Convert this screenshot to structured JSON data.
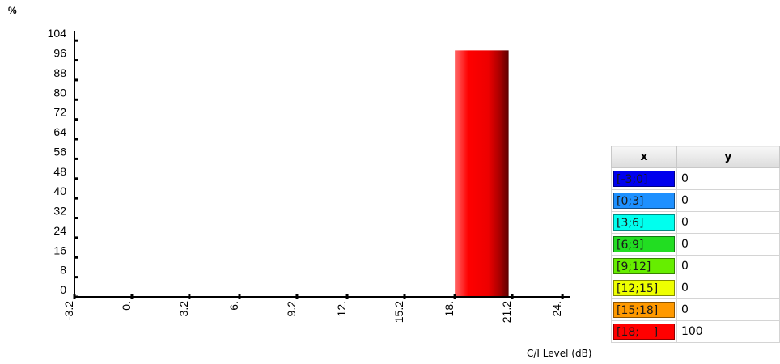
{
  "chart_data": {
    "type": "bar",
    "ylabel": "%",
    "xlabel": "C/I Level (dB)",
    "ylim": [
      0,
      108
    ],
    "yticks": [
      0,
      8,
      16,
      24,
      32,
      40,
      48,
      56,
      64,
      72,
      80,
      88,
      96,
      104
    ],
    "xlim": [
      -3.2,
      24.4
    ],
    "xticks": [
      "-3.2",
      "0.",
      "3.2",
      "6.",
      "9.2",
      "12.",
      "15.2",
      "18.",
      "21.2",
      "24."
    ],
    "xtick_values": [
      -3.2,
      0,
      3.2,
      6,
      9.2,
      12,
      15.2,
      18,
      21.2,
      24
    ],
    "bars": [
      {
        "x_from": 18,
        "x_to": 21,
        "value": 100,
        "color": "#ff0000"
      }
    ],
    "legend": {
      "header_x": "x",
      "header_y": "y",
      "rows": [
        {
          "label": "[-3;0]",
          "value": "0",
          "color": "#0000ee"
        },
        {
          "label": "[0;3]",
          "value": "0",
          "color": "#1e90ff"
        },
        {
          "label": "[3;6]",
          "value": "0",
          "color": "#00ffee"
        },
        {
          "label": "[6;9]",
          "value": "0",
          "color": "#22dd22"
        },
        {
          "label": "[9;12]",
          "value": "0",
          "color": "#66ee00"
        },
        {
          "label": "[12;15]",
          "value": "0",
          "color": "#eeff00"
        },
        {
          "label": "[15;18]",
          "value": "0",
          "color": "#ff9900"
        },
        {
          "label": "[18;    ]",
          "value": "100",
          "color": "#ff0000"
        }
      ]
    }
  }
}
